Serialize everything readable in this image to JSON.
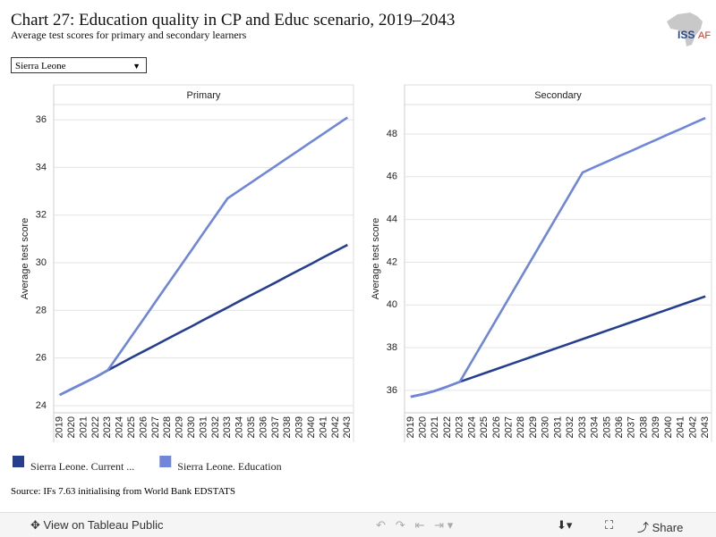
{
  "page": {
    "title": "Chart 27: Education quality in CP and Educ scenario, 2019–2043",
    "subtitle": "Average test scores for primary and secondary learners",
    "dropdown": "Sierra Leone",
    "logo": "ISS",
    "logo_suffix": "AF",
    "source": "Source: IFs 7.63 initialising from World Bank EDSTATS",
    "toolbar": {
      "view": "View on Tableau Public",
      "share": "Share"
    }
  },
  "chart_data": [
    {
      "type": "line",
      "title": "Primary",
      "ylabel": "Average test score",
      "categories": [
        "2019",
        "2020",
        "2021",
        "2022",
        "2023",
        "2024",
        "2025",
        "2026",
        "2027",
        "2028",
        "2029",
        "2030",
        "2031",
        "2032",
        "2033",
        "2034",
        "2035",
        "2036",
        "2037",
        "2038",
        "2039",
        "2040",
        "2041",
        "2042",
        "2043"
      ],
      "series": [
        {
          "name": "Sierra Leone. Current ...",
          "color": "#253f8e",
          "values": [
            24.45,
            24.7,
            24.95,
            25.2,
            25.48,
            25.75,
            26.02,
            26.28,
            26.54,
            26.81,
            27.07,
            27.33,
            27.6,
            27.86,
            28.12,
            28.39,
            28.65,
            28.91,
            29.17,
            29.44,
            29.7,
            29.96,
            30.23,
            30.49,
            30.75
          ]
        },
        {
          "name": "Sierra Leone. Education",
          "color": "#6f86d9",
          "values": [
            24.45,
            24.7,
            24.95,
            25.2,
            25.48,
            26.2,
            26.92,
            27.64,
            28.37,
            29.09,
            29.81,
            30.53,
            31.26,
            31.98,
            32.7,
            33.04,
            33.38,
            33.72,
            34.06,
            34.4,
            34.74,
            35.08,
            35.42,
            35.76,
            36.1
          ]
        }
      ],
      "ylim": [
        23.7,
        36.64
      ],
      "yticks": [
        24,
        26,
        28,
        30,
        32,
        34,
        36
      ],
      "grid": true
    },
    {
      "type": "line",
      "title": "Secondary",
      "ylabel": "Average test score",
      "categories": [
        "2019",
        "2020",
        "2021",
        "2022",
        "2023",
        "2024",
        "2025",
        "2026",
        "2027",
        "2028",
        "2029",
        "2030",
        "2031",
        "2032",
        "2033",
        "2034",
        "2035",
        "2036",
        "2037",
        "2038",
        "2039",
        "2040",
        "2041",
        "2042",
        "2043"
      ],
      "series": [
        {
          "color": "#253f8e",
          "values": [
            35.7,
            35.82,
            35.98,
            36.18,
            36.4,
            36.6,
            36.8,
            37.0,
            37.2,
            37.4,
            37.6,
            37.8,
            38.0,
            38.2,
            38.4,
            38.6,
            38.8,
            39.0,
            39.2,
            39.4,
            39.6,
            39.8,
            40.0,
            40.2,
            40.4
          ]
        },
        {
          "color": "#6f86d9",
          "values": [
            35.7,
            35.82,
            35.98,
            36.18,
            36.4,
            37.38,
            38.36,
            39.34,
            40.32,
            41.3,
            42.28,
            43.26,
            44.24,
            45.22,
            46.2,
            46.46,
            46.71,
            46.97,
            47.22,
            47.48,
            47.73,
            47.99,
            48.24,
            48.5,
            48.75
          ]
        }
      ],
      "ylim": [
        34.95,
        49.38
      ],
      "yticks": [
        36,
        38,
        40,
        42,
        44,
        46,
        48
      ],
      "grid": true
    }
  ]
}
